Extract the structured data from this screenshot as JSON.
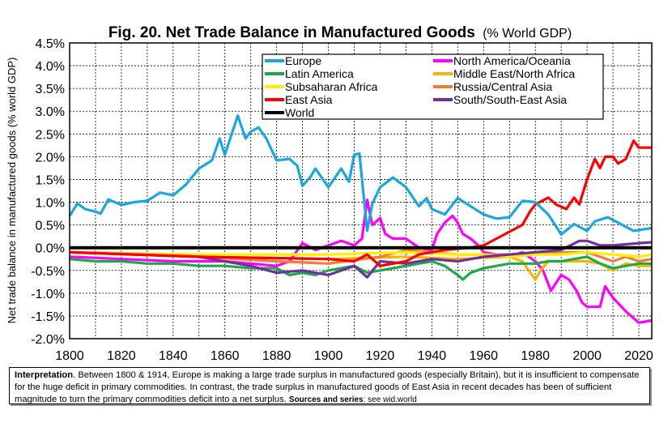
{
  "chart_data": {
    "type": "line",
    "title": "Fig. 20. Net Trade Balance in Manufactured Goods",
    "title_suffix": "(% World GDP)",
    "xlabel": "",
    "ylabel": "Net trade balance in manufactured goods (% world GDP)",
    "xlim": [
      1800,
      2025
    ],
    "ylim": [
      -2.0,
      4.5
    ],
    "xticks": [
      1800,
      1820,
      1840,
      1860,
      1880,
      1900,
      1920,
      1940,
      1960,
      1980,
      2000,
      2020
    ],
    "yticks": [
      "-2.0%",
      "-1.5%",
      "-1.0%",
      "-0.5%",
      "0.0%",
      "0.5%",
      "1.0%",
      "1.5%",
      "2.0%",
      "2.5%",
      "3.0%",
      "3.5%",
      "4.0%",
      "4.5%"
    ],
    "grid": true,
    "legend_position": "top-right",
    "series": [
      {
        "name": "Europe",
        "color": "#1aa7e0",
        "points": [
          [
            1800,
            0.7
          ],
          [
            1803,
            0.97
          ],
          [
            1806,
            0.85
          ],
          [
            1810,
            0.79
          ],
          [
            1812,
            0.75
          ],
          [
            1815,
            1.06
          ],
          [
            1820,
            0.94
          ],
          [
            1825,
            1.0
          ],
          [
            1830,
            1.03
          ],
          [
            1835,
            1.21
          ],
          [
            1840,
            1.15
          ],
          [
            1845,
            1.39
          ],
          [
            1850,
            1.74
          ],
          [
            1855,
            1.92
          ],
          [
            1858,
            2.4
          ],
          [
            1860,
            2.04
          ],
          [
            1865,
            2.9
          ],
          [
            1868,
            2.4
          ],
          [
            1870,
            2.55
          ],
          [
            1873,
            2.64
          ],
          [
            1876,
            2.4
          ],
          [
            1880,
            1.92
          ],
          [
            1885,
            1.95
          ],
          [
            1888,
            1.8
          ],
          [
            1890,
            1.36
          ],
          [
            1893,
            1.55
          ],
          [
            1895,
            1.74
          ],
          [
            1900,
            1.33
          ],
          [
            1905,
            1.74
          ],
          [
            1908,
            1.45
          ],
          [
            1910,
            2.04
          ],
          [
            1912,
            2.07
          ],
          [
            1915,
            0.37
          ],
          [
            1917,
            0.97
          ],
          [
            1920,
            1.33
          ],
          [
            1925,
            1.54
          ],
          [
            1930,
            1.33
          ],
          [
            1935,
            0.91
          ],
          [
            1938,
            1.09
          ],
          [
            1940,
            0.85
          ],
          [
            1945,
            0.73
          ],
          [
            1950,
            1.09
          ],
          [
            1955,
            0.91
          ],
          [
            1960,
            0.73
          ],
          [
            1965,
            0.64
          ],
          [
            1970,
            0.67
          ],
          [
            1975,
            1.03
          ],
          [
            1980,
            1.0
          ],
          [
            1985,
            0.73
          ],
          [
            1990,
            0.29
          ],
          [
            1995,
            0.52
          ],
          [
            2000,
            0.37
          ],
          [
            2003,
            0.58
          ],
          [
            2008,
            0.67
          ],
          [
            2012,
            0.55
          ],
          [
            2018,
            0.37
          ],
          [
            2025,
            0.43
          ]
        ]
      },
      {
        "name": "Latin America",
        "color": "#1fa84a",
        "points": [
          [
            1800,
            -0.25
          ],
          [
            1810,
            -0.3
          ],
          [
            1820,
            -0.3
          ],
          [
            1830,
            -0.35
          ],
          [
            1840,
            -0.35
          ],
          [
            1850,
            -0.4
          ],
          [
            1860,
            -0.4
          ],
          [
            1870,
            -0.45
          ],
          [
            1880,
            -0.45
          ],
          [
            1885,
            -0.6
          ],
          [
            1890,
            -0.55
          ],
          [
            1895,
            -0.6
          ],
          [
            1900,
            -0.5
          ],
          [
            1905,
            -0.45
          ],
          [
            1910,
            -0.4
          ],
          [
            1915,
            -0.55
          ],
          [
            1920,
            -0.5
          ],
          [
            1925,
            -0.45
          ],
          [
            1930,
            -0.4
          ],
          [
            1935,
            -0.35
          ],
          [
            1940,
            -0.3
          ],
          [
            1945,
            -0.4
          ],
          [
            1950,
            -0.6
          ],
          [
            1952,
            -0.7
          ],
          [
            1955,
            -0.55
          ],
          [
            1960,
            -0.45
          ],
          [
            1965,
            -0.4
          ],
          [
            1970,
            -0.35
          ],
          [
            1975,
            -0.35
          ],
          [
            1980,
            -0.35
          ],
          [
            1985,
            -0.3
          ],
          [
            1990,
            -0.3
          ],
          [
            1995,
            -0.25
          ],
          [
            2000,
            -0.2
          ],
          [
            2005,
            -0.35
          ],
          [
            2010,
            -0.45
          ],
          [
            2015,
            -0.4
          ],
          [
            2020,
            -0.35
          ],
          [
            2025,
            -0.35
          ]
        ]
      },
      {
        "name": "Subsaharan Africa",
        "color": "#ffee00",
        "points": [
          [
            1800,
            -0.1
          ],
          [
            1850,
            -0.15
          ],
          [
            1900,
            -0.15
          ],
          [
            1930,
            -0.1
          ],
          [
            1950,
            -0.15
          ],
          [
            1960,
            -0.15
          ],
          [
            1970,
            -0.2
          ],
          [
            1980,
            -0.15
          ],
          [
            1990,
            -0.15
          ],
          [
            2000,
            -0.1
          ],
          [
            2010,
            -0.15
          ],
          [
            2020,
            -0.2
          ],
          [
            2025,
            -0.15
          ]
        ]
      },
      {
        "name": "East Asia",
        "color": "#ff0000",
        "points": [
          [
            1800,
            -0.1
          ],
          [
            1850,
            -0.2
          ],
          [
            1900,
            -0.25
          ],
          [
            1910,
            -0.3
          ],
          [
            1915,
            -0.15
          ],
          [
            1920,
            -0.4
          ],
          [
            1930,
            -0.3
          ],
          [
            1935,
            -0.15
          ],
          [
            1945,
            -0.05
          ],
          [
            1955,
            0.0
          ],
          [
            1960,
            0.05
          ],
          [
            1965,
            0.2
          ],
          [
            1970,
            0.35
          ],
          [
            1975,
            0.5
          ],
          [
            1978,
            0.8
          ],
          [
            1980,
            0.95
          ],
          [
            1985,
            1.1
          ],
          [
            1988,
            0.95
          ],
          [
            1992,
            0.85
          ],
          [
            1995,
            1.1
          ],
          [
            1997,
            0.95
          ],
          [
            2000,
            1.5
          ],
          [
            2003,
            1.95
          ],
          [
            2005,
            1.75
          ],
          [
            2007,
            2.0
          ],
          [
            2010,
            2.0
          ],
          [
            2012,
            1.85
          ],
          [
            2015,
            1.95
          ],
          [
            2018,
            2.35
          ],
          [
            2020,
            2.2
          ],
          [
            2025,
            2.2
          ]
        ]
      },
      {
        "name": "World",
        "color": "#000000",
        "points": [
          [
            1800,
            0
          ],
          [
            2025,
            0
          ]
        ]
      },
      {
        "name": "North America/Oceania",
        "color": "#ff00ff",
        "points": [
          [
            1800,
            -0.2
          ],
          [
            1820,
            -0.25
          ],
          [
            1840,
            -0.3
          ],
          [
            1860,
            -0.3
          ],
          [
            1880,
            -0.4
          ],
          [
            1885,
            -0.3
          ],
          [
            1890,
            0.1
          ],
          [
            1895,
            -0.05
          ],
          [
            1900,
            0.05
          ],
          [
            1905,
            0.15
          ],
          [
            1910,
            0.05
          ],
          [
            1913,
            0.2
          ],
          [
            1915,
            1.05
          ],
          [
            1917,
            0.5
          ],
          [
            1920,
            0.65
          ],
          [
            1922,
            0.3
          ],
          [
            1925,
            0.2
          ],
          [
            1930,
            0.2
          ],
          [
            1935,
            0.0
          ],
          [
            1940,
            -0.05
          ],
          [
            1942,
            0.3
          ],
          [
            1945,
            0.55
          ],
          [
            1948,
            0.7
          ],
          [
            1950,
            0.55
          ],
          [
            1952,
            0.3
          ],
          [
            1955,
            0.2
          ],
          [
            1958,
            0.05
          ],
          [
            1960,
            -0.1
          ],
          [
            1970,
            -0.2
          ],
          [
            1975,
            -0.1
          ],
          [
            1980,
            -0.3
          ],
          [
            1983,
            -0.5
          ],
          [
            1986,
            -0.95
          ],
          [
            1990,
            -0.6
          ],
          [
            1993,
            -0.7
          ],
          [
            1996,
            -0.95
          ],
          [
            1998,
            -1.2
          ],
          [
            2000,
            -1.3
          ],
          [
            2005,
            -1.3
          ],
          [
            2007,
            -0.85
          ],
          [
            2010,
            -1.1
          ],
          [
            2015,
            -1.4
          ],
          [
            2020,
            -1.65
          ],
          [
            2025,
            -1.6
          ]
        ]
      },
      {
        "name": "Middle East/North Africa",
        "color": "#ffb300",
        "points": [
          [
            1800,
            -0.1
          ],
          [
            1850,
            -0.2
          ],
          [
            1900,
            -0.25
          ],
          [
            1930,
            -0.2
          ],
          [
            1950,
            -0.25
          ],
          [
            1970,
            -0.2
          ],
          [
            1975,
            -0.3
          ],
          [
            1980,
            -0.7
          ],
          [
            1982,
            -0.5
          ],
          [
            1985,
            -0.3
          ],
          [
            1990,
            -0.3
          ],
          [
            2000,
            -0.3
          ],
          [
            2005,
            -0.35
          ],
          [
            2010,
            -0.5
          ],
          [
            2015,
            -0.35
          ],
          [
            2020,
            -0.4
          ],
          [
            2025,
            -0.4
          ]
        ]
      },
      {
        "name": "Russia/Central Asia",
        "color": "#ee7f3a",
        "points": [
          [
            1800,
            -0.1
          ],
          [
            1850,
            -0.2
          ],
          [
            1880,
            -0.3
          ],
          [
            1900,
            -0.35
          ],
          [
            1920,
            -0.2
          ],
          [
            1930,
            -0.05
          ],
          [
            1950,
            -0.15
          ],
          [
            1970,
            -0.15
          ],
          [
            1990,
            -0.1
          ],
          [
            2000,
            -0.1
          ],
          [
            2010,
            -0.3
          ],
          [
            2015,
            -0.2
          ],
          [
            2020,
            -0.3
          ],
          [
            2025,
            -0.25
          ]
        ]
      },
      {
        "name": "South/South-East Asia",
        "color": "#7030a0",
        "points": [
          [
            1800,
            -0.1
          ],
          [
            1850,
            -0.2
          ],
          [
            1870,
            -0.4
          ],
          [
            1880,
            -0.55
          ],
          [
            1890,
            -0.5
          ],
          [
            1900,
            -0.6
          ],
          [
            1910,
            -0.4
          ],
          [
            1915,
            -0.65
          ],
          [
            1920,
            -0.3
          ],
          [
            1930,
            -0.35
          ],
          [
            1940,
            -0.25
          ],
          [
            1950,
            -0.3
          ],
          [
            1960,
            -0.2
          ],
          [
            1970,
            -0.15
          ],
          [
            1980,
            -0.1
          ],
          [
            1990,
            -0.05
          ],
          [
            1997,
            0.15
          ],
          [
            2000,
            0.15
          ],
          [
            2005,
            0.05
          ],
          [
            2010,
            0.05
          ],
          [
            2020,
            0.1
          ],
          [
            2025,
            0.12
          ]
        ]
      }
    ]
  },
  "interpretation": {
    "label": "Interpretation",
    "text": ". Between 1800 & 1914, Europe is making a large trade surplus in manufactured goods (especially Britain), but it is insufficient to compensate for the huge deficit in primary commodities. In contrast, the trade surplus in manufactured goods of East Asia in recent decades has been of sufficient magnitude to turn the primary commodities deficit into a net surplus.",
    "sources_label": "Sources and series",
    "sources_text": ": see wid.world"
  }
}
